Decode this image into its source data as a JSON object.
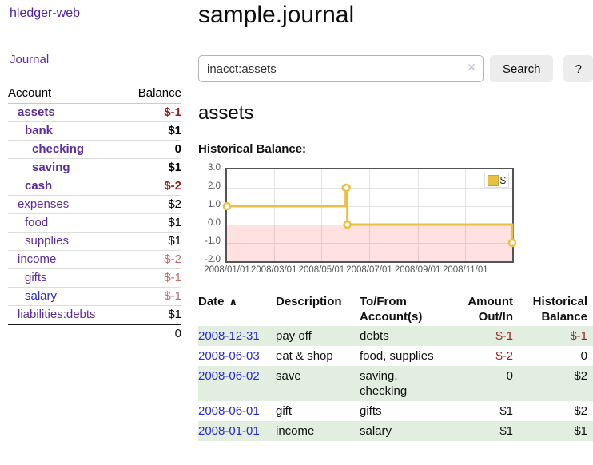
{
  "sidebar": {
    "app_title": "hledger-web",
    "nav": {
      "journal_label": "Journal"
    },
    "accounts_table": {
      "headers": {
        "account": "Account",
        "balance": "Balance"
      },
      "rows": [
        {
          "label": "assets",
          "indent": 1,
          "bold": true,
          "balance": "$-1",
          "balance_style": "negative-dark"
        },
        {
          "label": "bank",
          "indent": 2,
          "bold": true,
          "balance": "$1",
          "balance_style": "normal"
        },
        {
          "label": "checking",
          "indent": 3,
          "bold": true,
          "balance": "0",
          "balance_style": "normal"
        },
        {
          "label": "saving",
          "indent": 3,
          "bold": true,
          "balance": "$1",
          "balance_style": "normal"
        },
        {
          "label": "cash",
          "indent": 2,
          "bold": true,
          "balance": "$-2",
          "balance_style": "negative-dark"
        },
        {
          "label": "expenses",
          "indent": 1,
          "bold": false,
          "balance": "$2",
          "balance_style": "normal"
        },
        {
          "label": "food",
          "indent": 2,
          "bold": false,
          "balance": "$1",
          "balance_style": "normal"
        },
        {
          "label": "supplies",
          "indent": 2,
          "bold": false,
          "balance": "$1",
          "balance_style": "normal"
        },
        {
          "label": "income",
          "indent": 1,
          "bold": false,
          "balance": "$-2",
          "balance_style": "negative-light"
        },
        {
          "label": "gifts",
          "indent": 2,
          "bold": false,
          "balance": "$-1",
          "balance_style": "negative-light"
        },
        {
          "label": "salary",
          "indent": 2,
          "bold": false,
          "balance": "$-1",
          "balance_style": "negative-light",
          "link_style": "blue"
        },
        {
          "label": "liabilities:debts",
          "indent": 1,
          "bold": false,
          "balance": "$1",
          "balance_style": "normal"
        }
      ],
      "total": "0"
    }
  },
  "main": {
    "title": "sample.journal",
    "search": {
      "value": "inacct:assets",
      "clear_icon": "✕",
      "search_button": "Search",
      "help_button": "?"
    },
    "account_heading": "assets",
    "chart_heading": "Historical Balance:",
    "register_table": {
      "headers": {
        "date": "Date",
        "sort_icon": "∧",
        "description": "Description",
        "accounts": "To/From Account(s)",
        "amount": "Amount Out/In",
        "balance": "Historical Balance"
      },
      "rows": [
        {
          "date": "2008-12-31",
          "description": "pay off",
          "accounts": "debts",
          "amount": "$-1",
          "amount_negative": true,
          "balance": "$-1",
          "balance_negative": true
        },
        {
          "date": "2008-06-03",
          "description": "eat & shop",
          "accounts": "food, supplies",
          "amount": "$-2",
          "amount_negative": true,
          "balance": "0",
          "balance_negative": false
        },
        {
          "date": "2008-06-02",
          "description": "save",
          "accounts": "saving, checking",
          "amount": "0",
          "amount_negative": false,
          "balance": "$2",
          "balance_negative": false
        },
        {
          "date": "2008-06-01",
          "description": "gift",
          "accounts": "gifts",
          "amount": "$1",
          "amount_negative": false,
          "balance": "$2",
          "balance_negative": false
        },
        {
          "date": "2008-01-01",
          "description": "income",
          "accounts": "salary",
          "amount": "$1",
          "amount_negative": false,
          "balance": "$1",
          "balance_negative": false
        }
      ]
    }
  },
  "chart_data": {
    "type": "line",
    "step": true,
    "title": "Historical Balance:",
    "series": [
      {
        "name": "$",
        "color": "#e9c044",
        "points": [
          [
            "2008-01-01",
            1
          ],
          [
            "2008-06-01",
            2
          ],
          [
            "2008-06-02",
            2
          ],
          [
            "2008-06-03",
            0
          ],
          [
            "2008-12-31",
            -1
          ]
        ]
      }
    ],
    "x_range": [
      "2008-01-01",
      "2008-12-31"
    ],
    "x_ticks": [
      "2008/01/01",
      "2008/03/01",
      "2008/05/01",
      "2008/07/01",
      "2008/09/01",
      "2008/11/01"
    ],
    "y_ticks": [
      3.0,
      2.0,
      1.0,
      0.0,
      -1.0,
      -2.0
    ],
    "ylim": [
      -2,
      3
    ],
    "grid": true,
    "legend_position": "top-right",
    "negative_region": {
      "below": 0,
      "fill": "#fbdcdc",
      "zero_line_color": "#8b0000"
    }
  },
  "colors": {
    "link_purple": "#5c2d9e",
    "link_blue": "#2a2ad4",
    "negative_dark": "#9a1c1c",
    "negative_light": "#c26a6a",
    "row_highlight_green": "#e2efe0",
    "chart_line_yellow": "#e9c044",
    "chart_border_gray": "#545454"
  }
}
